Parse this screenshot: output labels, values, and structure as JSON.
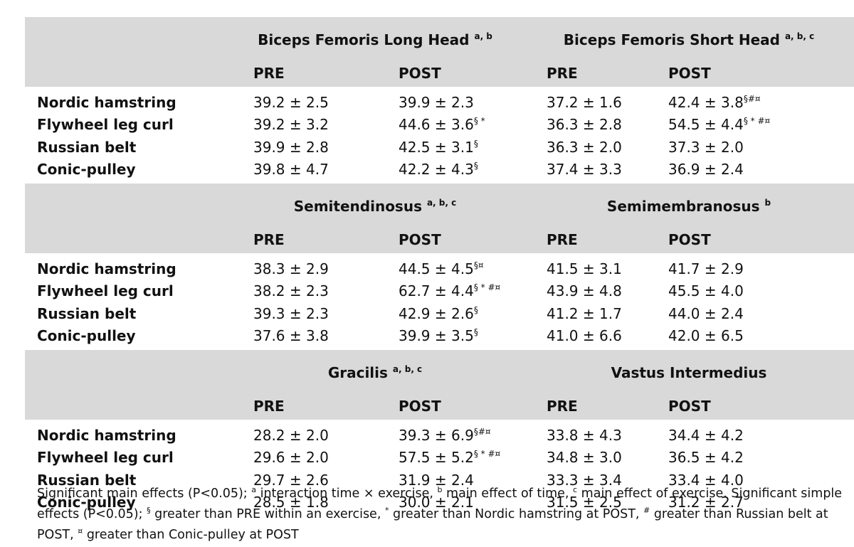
{
  "blocks": [
    {
      "left_title": "Biceps Femoris Long Head",
      "left_sup": "a, b",
      "right_title": "Biceps Femoris Short Head",
      "right_sup": "a, b, c",
      "rows": [
        {
          "label": "Nordic hamstring",
          "pre1": "39.2 ± 2.5",
          "post1": "39.9 ± 2.3",
          "post1_sup": "",
          "pre2": "37.2 ± 1.6",
          "post2": "42.4 ± 3.8",
          "post2_sup": "§#¤"
        },
        {
          "label": "Flywheel leg curl",
          "pre1": "39.2 ± 3.2",
          "post1": "44.6 ± 3.6",
          "post1_sup": "§ *",
          "pre2": "36.3 ± 2.8",
          "post2": "54.5 ± 4.4",
          "post2_sup": "§ * #¤"
        },
        {
          "label": "Russian belt",
          "pre1": "39.9 ± 2.8",
          "post1": "42.5 ± 3.1",
          "post1_sup": "§",
          "pre2": "36.3 ± 2.0",
          "post2": "37.3 ± 2.0",
          "post2_sup": ""
        },
        {
          "label": "Conic-pulley",
          "pre1": "39.8 ± 4.7",
          "post1": "42.2 ± 4.3",
          "post1_sup": "§",
          "pre2": "37.4 ± 3.3",
          "post2": "36.9 ± 2.4",
          "post2_sup": ""
        }
      ]
    },
    {
      "left_title": "Semitendinosus",
      "left_sup": "a, b, c",
      "right_title": "Semimembranosus",
      "right_sup": "b",
      "rows": [
        {
          "label": "Nordic hamstring",
          "pre1": "38.3 ± 2.9",
          "post1": "44.5 ± 4.5",
          "post1_sup": "§¤",
          "pre2": "41.5 ± 3.1",
          "post2": "41.7 ± 2.9",
          "post2_sup": ""
        },
        {
          "label": "Flywheel leg curl",
          "pre1": "38.2 ± 2.3",
          "post1": "62.7 ± 4.4",
          "post1_sup": "§ * #¤",
          "pre2": "43.9 ± 4.8",
          "post2": "45.5 ± 4.0",
          "post2_sup": ""
        },
        {
          "label": "Russian belt",
          "pre1": "39.3 ± 2.3",
          "post1": "42.9 ± 2.6",
          "post1_sup": "§",
          "pre2": "41.2 ± 1.7",
          "post2": "44.0 ± 2.4",
          "post2_sup": ""
        },
        {
          "label": "Conic-pulley",
          "pre1": "37.6 ± 3.8",
          "post1": "39.9 ± 3.5",
          "post1_sup": "§",
          "pre2": "41.0 ± 6.6",
          "post2": "42.0 ± 6.5",
          "post2_sup": ""
        }
      ]
    },
    {
      "left_title": "Gracilis",
      "left_sup": "a, b, c",
      "right_title": "Vastus Intermedius",
      "right_sup": "",
      "rows": [
        {
          "label": "Nordic hamstring",
          "pre1": "28.2 ± 2.0",
          "post1": "39.3 ± 6.9",
          "post1_sup": "§#¤",
          "pre2": "33.8 ± 4.3",
          "post2": "34.4 ± 4.2",
          "post2_sup": ""
        },
        {
          "label": "Flywheel leg curl",
          "pre1": "29.6 ± 2.0",
          "post1": "57.5 ± 5.2",
          "post1_sup": "§ * #¤",
          "pre2": "34.8 ± 3.0",
          "post2": "36.5 ± 4.2",
          "post2_sup": ""
        },
        {
          "label": "Russian belt",
          "pre1": "29.7 ± 2.6",
          "post1": "31.9 ± 2.4",
          "post1_sup": "",
          "pre2": "33.3 ± 3.4",
          "post2": "33.4 ± 4.0",
          "post2_sup": ""
        },
        {
          "label": "Conic-pulley",
          "pre1": "28.5 ± 1.8",
          "post1": "30.0 ± 2.1",
          "post1_sup": "",
          "pre2": "31.5 ± 2.5",
          "post2": "31.2 ± 2.7",
          "post2_sup": ""
        }
      ]
    }
  ],
  "col_headers": {
    "pre": "PRE",
    "post": "POST"
  },
  "footnote": {
    "t1": "Significant main effects (P<0.05); ",
    "s1": "a",
    "t2": " interaction time × exercise, ",
    "s2": "b",
    "t3": " main effect of time, ",
    "s3": "c",
    "t4": " main effect of exercise. Significant simple effects (P<0.05); ",
    "s4": "§",
    "t5": " greater than PRE within an exercise,  ",
    "s5": "*",
    "t6": " greater than Nordic hamstring at POST, ",
    "s6": "#",
    "t7": " greater than Russian belt at POST, ",
    "s7": "¤",
    "t8": " greater than Conic-pulley at POST"
  }
}
